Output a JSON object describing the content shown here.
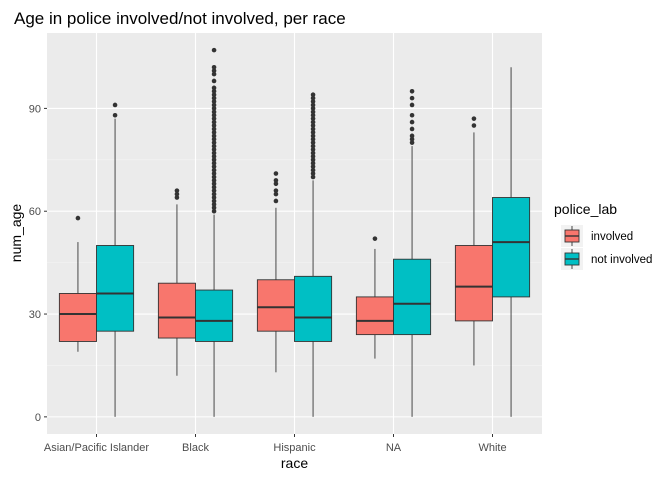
{
  "chart_data": {
    "type": "boxplot",
    "title": "Age in police involved/not involved, per race",
    "xlabel": "race",
    "ylabel": "num_age",
    "categories": [
      "Asian/Pacific Islander",
      "Black",
      "Hispanic",
      "NA",
      "White"
    ],
    "y_ticks": [
      0,
      30,
      60,
      90
    ],
    "ylim": [
      -5,
      112
    ],
    "grid": true,
    "legend": {
      "title": "police_lab",
      "position": "right",
      "entries": [
        {
          "name": "involved",
          "color": "#F8766D"
        },
        {
          "name": "not involved",
          "color": "#00BFC4"
        }
      ]
    },
    "series": [
      {
        "name": "involved",
        "color": "#F8766D",
        "boxes": [
          {
            "category": "Asian/Pacific Islander",
            "whisker_low": 19,
            "q1": 22,
            "median": 30,
            "q3": 36,
            "whisker_high": 51,
            "outliers": [
              58
            ]
          },
          {
            "category": "Black",
            "whisker_low": 12,
            "q1": 23,
            "median": 29,
            "q3": 39,
            "whisker_high": 62,
            "outliers": [
              64,
              65,
              66
            ]
          },
          {
            "category": "Hispanic",
            "whisker_low": 13,
            "q1": 25,
            "median": 32,
            "q3": 40,
            "whisker_high": 61,
            "outliers": [
              63,
              65,
              66,
              68,
              69,
              71
            ]
          },
          {
            "category": "NA",
            "whisker_low": 17,
            "q1": 24,
            "median": 28,
            "q3": 35,
            "whisker_high": 49,
            "outliers": [
              52
            ]
          },
          {
            "category": "White",
            "whisker_low": 15,
            "q1": 28,
            "median": 38,
            "q3": 50,
            "whisker_high": 83,
            "outliers": [
              85,
              87
            ]
          }
        ]
      },
      {
        "name": "not involved",
        "color": "#00BFC4",
        "boxes": [
          {
            "category": "Asian/Pacific Islander",
            "whisker_low": 0,
            "q1": 25,
            "median": 36,
            "q3": 50,
            "whisker_high": 87,
            "outliers": [
              88,
              91
            ]
          },
          {
            "category": "Black",
            "whisker_low": 0,
            "q1": 22,
            "median": 28,
            "q3": 37,
            "whisker_high": 59,
            "outliers": [
              60,
              61,
              62,
              63,
              64,
              65,
              66,
              67,
              68,
              69,
              70,
              71,
              72,
              73,
              74,
              75,
              76,
              77,
              78,
              79,
              80,
              81,
              82,
              83,
              84,
              85,
              86,
              87,
              88,
              89,
              90,
              91,
              92,
              93,
              94,
              95,
              96,
              98,
              100,
              101,
              102,
              107
            ]
          },
          {
            "category": "Hispanic",
            "whisker_low": 0,
            "q1": 22,
            "median": 29,
            "q3": 41,
            "whisker_high": 69,
            "outliers": [
              70,
              71,
              72,
              73,
              74,
              75,
              76,
              77,
              78,
              79,
              80,
              81,
              82,
              83,
              84,
              85,
              86,
              87,
              88,
              89,
              90,
              91,
              92,
              93,
              94
            ]
          },
          {
            "category": "NA",
            "whisker_low": 0,
            "q1": 24,
            "median": 33,
            "q3": 46,
            "whisker_high": 79,
            "outliers": [
              80,
              81,
              82,
              84,
              86,
              88,
              91,
              93,
              95
            ]
          },
          {
            "category": "White",
            "whisker_low": 0,
            "q1": 35,
            "median": 51,
            "q3": 64,
            "whisker_high": 102,
            "outliers": []
          }
        ]
      }
    ]
  }
}
